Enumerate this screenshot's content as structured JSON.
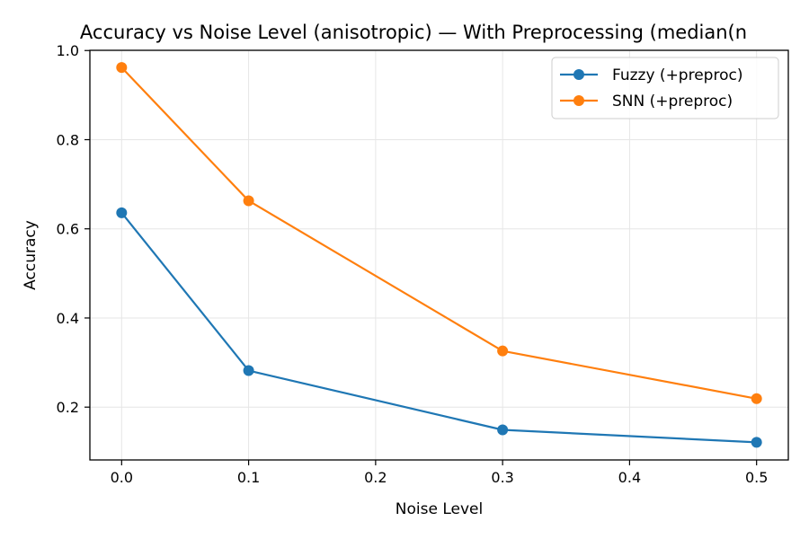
{
  "chart_data": {
    "type": "line",
    "title": "Accuracy vs Noise Level (anisotropic) — With Preprocessing (median(n",
    "xlabel": "Noise Level",
    "ylabel": "Accuracy",
    "x": [
      0.0,
      0.1,
      0.3,
      0.5
    ],
    "xlim": [
      -0.025,
      0.525
    ],
    "ylim": [
      0.0815,
      1.0005
    ],
    "xticks": [
      "0.0",
      "0.1",
      "0.2",
      "0.3",
      "0.4",
      "0.5"
    ],
    "yticks": [
      "0.2",
      "0.4",
      "0.6",
      "0.8",
      "1.0"
    ],
    "grid": true,
    "legend_position": "top-right",
    "series": [
      {
        "name": "Fuzzy (+preproc)",
        "color": "#1f77b4",
        "values": [
          0.636,
          0.282,
          0.149,
          0.121
        ]
      },
      {
        "name": "SNN (+preproc)",
        "color": "#ff7f0e",
        "values": [
          0.962,
          0.663,
          0.326,
          0.219
        ]
      }
    ]
  }
}
